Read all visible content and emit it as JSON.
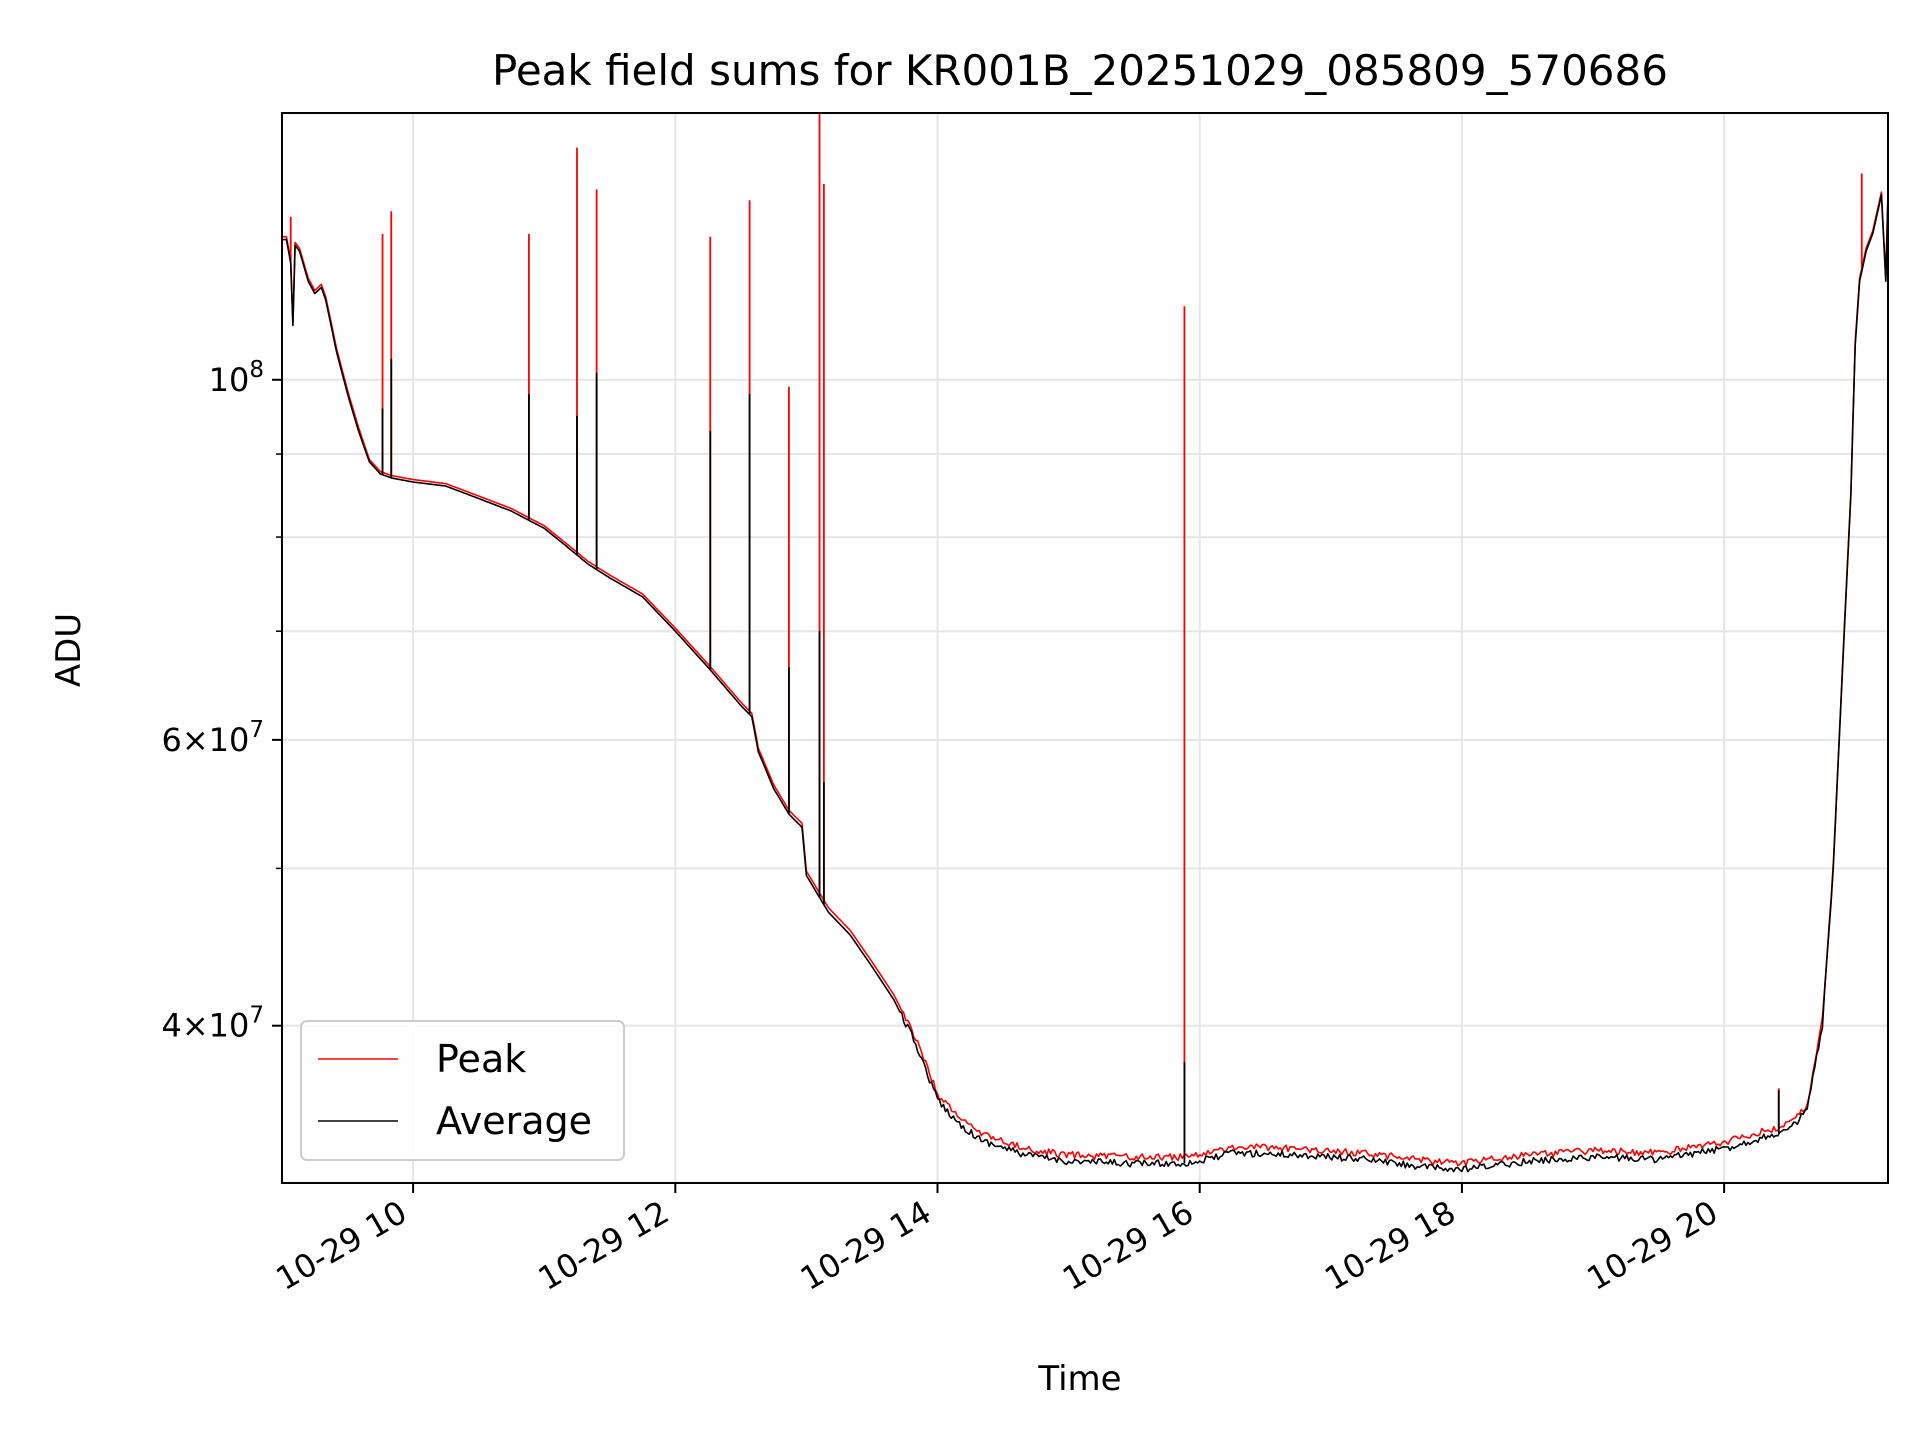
{
  "chart_data": {
    "type": "line",
    "title": "Peak field sums for KR001B_20251029_085809_570686",
    "xlabel": "Time",
    "ylabel": "ADU",
    "yscale": "log",
    "xlim": [
      "2025-10-29 09:00",
      "2025-10-29 21:15"
    ],
    "ylim": [
      32000000,
      146000000
    ],
    "grid": true,
    "legend_position": "lower-left",
    "x_tick_labels": [
      {
        "x": "2025-10-29 10:00",
        "label": "10-29 10"
      },
      {
        "x": "2025-10-29 12:00",
        "label": "10-29 12"
      },
      {
        "x": "2025-10-29 14:00",
        "label": "10-29 14"
      },
      {
        "x": "2025-10-29 16:00",
        "label": "10-29 16"
      },
      {
        "x": "2025-10-29 18:00",
        "label": "10-29 18"
      },
      {
        "x": "2025-10-29 20:00",
        "label": "10-29 20"
      }
    ],
    "y_major_ticks": [
      {
        "value": 100000000,
        "base": "10",
        "exp": "8"
      },
      {
        "value": 60000000,
        "base": "6×10",
        "exp": "7"
      },
      {
        "value": 40000000,
        "base": "4×10",
        "exp": "7"
      }
    ],
    "y_minor_ticks": [
      90000000,
      80000000,
      70000000,
      50000000
    ],
    "series": [
      {
        "name": "Average",
        "color": "#000000",
        "points": [
          [
            "2025-10-29 09:00",
            122000000
          ],
          [
            "2025-10-29 09:02",
            122000000
          ],
          [
            "2025-10-29 09:04",
            118000000
          ],
          [
            "2025-10-29 09:05",
            108000000
          ],
          [
            "2025-10-29 09:06",
            121000000
          ],
          [
            "2025-10-29 09:08",
            120000000
          ],
          [
            "2025-10-29 09:12",
            115000000
          ],
          [
            "2025-10-29 09:15",
            113000000
          ],
          [
            "2025-10-29 09:18",
            114000000
          ],
          [
            "2025-10-29 09:20",
            112000000
          ],
          [
            "2025-10-29 09:25",
            104000000
          ],
          [
            "2025-10-29 09:30",
            98000000
          ],
          [
            "2025-10-29 09:35",
            93000000
          ],
          [
            "2025-10-29 09:40",
            89000000
          ],
          [
            "2025-10-29 09:45",
            87500000
          ],
          [
            "2025-10-29 09:50",
            87000000
          ],
          [
            "2025-10-29 10:00",
            86500000
          ],
          [
            "2025-10-29 10:15",
            86000000
          ],
          [
            "2025-10-29 10:30",
            84500000
          ],
          [
            "2025-10-29 10:45",
            83000000
          ],
          [
            "2025-10-29 11:00",
            81000000
          ],
          [
            "2025-10-29 11:10",
            79000000
          ],
          [
            "2025-10-29 11:20",
            77000000
          ],
          [
            "2025-10-29 11:30",
            75500000
          ],
          [
            "2025-10-29 11:45",
            73500000
          ],
          [
            "2025-10-29 12:00",
            70000000
          ],
          [
            "2025-10-29 12:15",
            66500000
          ],
          [
            "2025-10-29 12:30",
            63000000
          ],
          [
            "2025-10-29 12:35",
            62000000
          ],
          [
            "2025-10-29 12:38",
            59000000
          ],
          [
            "2025-10-29 12:45",
            56000000
          ],
          [
            "2025-10-29 12:52",
            54000000
          ],
          [
            "2025-10-29 12:58",
            53000000
          ],
          [
            "2025-10-29 13:00",
            49500000
          ],
          [
            "2025-10-29 13:10",
            47000000
          ],
          [
            "2025-10-29 13:20",
            45500000
          ],
          [
            "2025-10-29 13:30",
            43500000
          ],
          [
            "2025-10-29 13:40",
            41500000
          ],
          [
            "2025-10-29 13:50",
            39000000
          ],
          [
            "2025-10-29 14:00",
            36000000
          ],
          [
            "2025-10-29 14:10",
            34800000
          ],
          [
            "2025-10-29 14:20",
            34000000
          ],
          [
            "2025-10-29 14:40",
            33300000
          ],
          [
            "2025-10-29 15:00",
            33000000
          ],
          [
            "2025-10-29 15:30",
            32900000
          ],
          [
            "2025-10-29 15:52",
            32900000
          ],
          [
            "2025-10-29 16:00",
            33000000
          ],
          [
            "2025-10-29 16:15",
            33400000
          ],
          [
            "2025-10-29 16:45",
            33300000
          ],
          [
            "2025-10-29 17:15",
            33100000
          ],
          [
            "2025-10-29 17:45",
            32700000
          ],
          [
            "2025-10-29 18:00",
            32600000
          ],
          [
            "2025-10-29 18:30",
            33000000
          ],
          [
            "2025-10-29 19:00",
            33200000
          ],
          [
            "2025-10-29 19:30",
            33100000
          ],
          [
            "2025-10-29 20:00",
            33600000
          ],
          [
            "2025-10-29 20:20",
            34200000
          ],
          [
            "2025-10-29 20:30",
            34500000
          ],
          [
            "2025-10-29 20:38",
            35500000
          ],
          [
            "2025-10-29 20:45",
            40000000
          ],
          [
            "2025-10-29 20:50",
            50000000
          ],
          [
            "2025-10-29 20:55",
            70000000
          ],
          [
            "2025-10-29 20:58",
            85000000
          ],
          [
            "2025-10-29 21:00",
            105000000
          ],
          [
            "2025-10-29 21:02",
            115000000
          ],
          [
            "2025-10-29 21:05",
            120000000
          ],
          [
            "2025-10-29 21:08",
            123000000
          ],
          [
            "2025-10-29 21:12",
            130000000
          ],
          [
            "2025-10-29 21:14",
            115000000
          ],
          [
            "2025-10-29 21:15",
            130000000
          ]
        ],
        "spikes": [
          [
            "2025-10-29 09:46",
            96000000
          ],
          [
            "2025-10-29 09:50",
            103000000
          ],
          [
            "2025-10-29 10:53",
            98000000
          ],
          [
            "2025-10-29 11:15",
            95000000
          ],
          [
            "2025-10-29 11:24",
            101000000
          ],
          [
            "2025-10-29 12:16",
            93000000
          ],
          [
            "2025-10-29 12:34",
            98000000
          ],
          [
            "2025-10-29 12:52",
            66500000
          ],
          [
            "2025-10-29 13:06",
            70000000
          ],
          [
            "2025-10-29 13:08",
            56500000
          ],
          [
            "2025-10-29 15:53",
            38000000
          ],
          [
            "2025-10-29 20:25",
            36500000
          ]
        ]
      },
      {
        "name": "Peak",
        "color": "#ff0000",
        "points": [
          [
            "2025-10-29 09:00",
            122500000
          ],
          [
            "2025-10-29 09:02",
            122500000
          ],
          [
            "2025-10-29 09:04",
            118500000
          ],
          [
            "2025-10-29 09:05",
            108500000
          ],
          [
            "2025-10-29 09:06",
            121500000
          ],
          [
            "2025-10-29 09:08",
            120500000
          ],
          [
            "2025-10-29 09:12",
            115500000
          ],
          [
            "2025-10-29 09:15",
            113500000
          ],
          [
            "2025-10-29 09:18",
            114500000
          ],
          [
            "2025-10-29 09:20",
            112500000
          ],
          [
            "2025-10-29 09:25",
            104500000
          ],
          [
            "2025-10-29 09:30",
            98500000
          ],
          [
            "2025-10-29 09:35",
            93500000
          ],
          [
            "2025-10-29 09:40",
            89300000
          ],
          [
            "2025-10-29 09:45",
            87800000
          ],
          [
            "2025-10-29 09:50",
            87300000
          ],
          [
            "2025-10-29 10:00",
            86800000
          ],
          [
            "2025-10-29 10:15",
            86300000
          ],
          [
            "2025-10-29 10:30",
            84800000
          ],
          [
            "2025-10-29 10:45",
            83300000
          ],
          [
            "2025-10-29 11:00",
            81300000
          ],
          [
            "2025-10-29 11:10",
            79300000
          ],
          [
            "2025-10-29 11:20",
            77300000
          ],
          [
            "2025-10-29 11:30",
            75800000
          ],
          [
            "2025-10-29 11:45",
            73800000
          ],
          [
            "2025-10-29 12:00",
            70300000
          ],
          [
            "2025-10-29 12:15",
            66800000
          ],
          [
            "2025-10-29 12:30",
            63300000
          ],
          [
            "2025-10-29 12:35",
            62300000
          ],
          [
            "2025-10-29 12:38",
            59300000
          ],
          [
            "2025-10-29 12:45",
            56300000
          ],
          [
            "2025-10-29 12:52",
            54300000
          ],
          [
            "2025-10-29 12:58",
            53300000
          ],
          [
            "2025-10-29 13:00",
            49800000
          ],
          [
            "2025-10-29 13:10",
            47300000
          ],
          [
            "2025-10-29 13:20",
            45800000
          ],
          [
            "2025-10-29 13:30",
            43800000
          ],
          [
            "2025-10-29 13:40",
            41800000
          ],
          [
            "2025-10-29 13:50",
            39300000
          ],
          [
            "2025-10-29 14:00",
            36300000
          ],
          [
            "2025-10-29 14:10",
            35100000
          ],
          [
            "2025-10-29 14:20",
            34300000
          ],
          [
            "2025-10-29 14:40",
            33600000
          ],
          [
            "2025-10-29 15:00",
            33300000
          ],
          [
            "2025-10-29 15:30",
            33200000
          ],
          [
            "2025-10-29 15:52",
            33200000
          ],
          [
            "2025-10-29 16:00",
            33300000
          ],
          [
            "2025-10-29 16:15",
            33700000
          ],
          [
            "2025-10-29 16:45",
            33600000
          ],
          [
            "2025-10-29 17:15",
            33400000
          ],
          [
            "2025-10-29 17:45",
            33000000
          ],
          [
            "2025-10-29 18:00",
            32900000
          ],
          [
            "2025-10-29 18:30",
            33300000
          ],
          [
            "2025-10-29 19:00",
            33500000
          ],
          [
            "2025-10-29 19:30",
            33400000
          ],
          [
            "2025-10-29 20:00",
            33900000
          ],
          [
            "2025-10-29 20:20",
            34500000
          ],
          [
            "2025-10-29 20:30",
            34800000
          ],
          [
            "2025-10-29 20:38",
            35800000
          ],
          [
            "2025-10-29 20:45",
            40300000
          ],
          [
            "2025-10-29 20:50",
            50300000
          ],
          [
            "2025-10-29 20:55",
            70300000
          ],
          [
            "2025-10-29 20:58",
            85300000
          ],
          [
            "2025-10-29 21:00",
            105500000
          ],
          [
            "2025-10-29 21:02",
            115500000
          ],
          [
            "2025-10-29 21:05",
            120500000
          ],
          [
            "2025-10-29 21:08",
            123500000
          ],
          [
            "2025-10-29 21:12",
            130500000
          ],
          [
            "2025-10-29 21:14",
            115500000
          ],
          [
            "2025-10-29 21:15",
            130500000
          ]
        ],
        "spikes": [
          [
            "2025-10-29 09:04",
            126000000
          ],
          [
            "2025-10-29 09:46",
            123000000
          ],
          [
            "2025-10-29 09:50",
            127000000
          ],
          [
            "2025-10-29 10:53",
            123000000
          ],
          [
            "2025-10-29 11:15",
            139000000
          ],
          [
            "2025-10-29 11:24",
            131000000
          ],
          [
            "2025-10-29 12:16",
            122500000
          ],
          [
            "2025-10-29 12:34",
            129000000
          ],
          [
            "2025-10-29 12:52",
            99000000
          ],
          [
            "2025-10-29 13:06",
            146000000
          ],
          [
            "2025-10-29 13:08",
            132000000
          ],
          [
            "2025-10-29 15:53",
            111000000
          ],
          [
            "2025-10-29 20:25",
            36600000
          ],
          [
            "2025-10-29 21:03",
            134000000
          ]
        ]
      }
    ]
  }
}
